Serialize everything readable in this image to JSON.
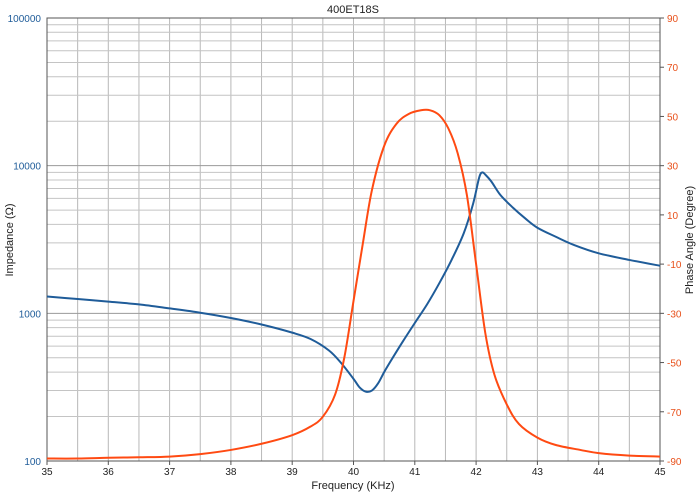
{
  "chart_data": {
    "type": "line",
    "title": "400ET18S",
    "xlabel": "Frequency (KHz)",
    "ylabel_left": "Impedance (Ω)",
    "ylabel_right": "Phase Angle (Degree)",
    "xlim": [
      35,
      45
    ],
    "x_ticks": [
      "35",
      "36",
      "37",
      "38",
      "39",
      "40",
      "41",
      "42",
      "43",
      "44",
      "45"
    ],
    "ylim_left": [
      100,
      100000
    ],
    "y_scale_left": "log",
    "y_ticks_left": [
      "100",
      "1000",
      "10000",
      "100000"
    ],
    "ylim_right": [
      -90,
      90
    ],
    "y_ticks_right": [
      "90",
      "70",
      "50",
      "30",
      "10",
      "-10",
      "-30",
      "-50",
      "-70",
      "-90"
    ],
    "grid": true,
    "colors": {
      "impedance": "#1f5c99",
      "phase": "#ff4a12"
    },
    "series": [
      {
        "axis": "left",
        "points": [
          [
            35,
            1300
          ],
          [
            35.5,
            1250
          ],
          [
            36,
            1200
          ],
          [
            36.5,
            1150
          ],
          [
            37,
            1080
          ],
          [
            37.5,
            1010
          ],
          [
            38,
            930
          ],
          [
            38.5,
            840
          ],
          [
            39,
            740
          ],
          [
            39.3,
            670
          ],
          [
            39.6,
            560
          ],
          [
            39.8,
            460
          ],
          [
            40,
            360
          ],
          [
            40.1,
            315
          ],
          [
            40.2,
            295
          ],
          [
            40.3,
            300
          ],
          [
            40.4,
            335
          ],
          [
            40.5,
            400
          ],
          [
            40.6,
            470
          ],
          [
            40.8,
            640
          ],
          [
            41,
            860
          ],
          [
            41.2,
            1150
          ],
          [
            41.4,
            1600
          ],
          [
            41.6,
            2300
          ],
          [
            41.8,
            3500
          ],
          [
            41.95,
            5500
          ],
          [
            42.05,
            8300
          ],
          [
            42.1,
            9000
          ],
          [
            42.15,
            8700
          ],
          [
            42.25,
            7800
          ],
          [
            42.4,
            6300
          ],
          [
            42.6,
            5200
          ],
          [
            42.8,
            4400
          ],
          [
            43,
            3800
          ],
          [
            43.3,
            3300
          ],
          [
            43.6,
            2900
          ],
          [
            44,
            2550
          ],
          [
            44.5,
            2300
          ],
          [
            45,
            2100
          ]
        ]
      },
      {
        "axis": "right",
        "points": [
          [
            35,
            -89
          ],
          [
            35.5,
            -89
          ],
          [
            36,
            -88.7
          ],
          [
            36.5,
            -88.5
          ],
          [
            37,
            -88.2
          ],
          [
            37.5,
            -87.2
          ],
          [
            38,
            -85.5
          ],
          [
            38.5,
            -83
          ],
          [
            39,
            -79.5
          ],
          [
            39.3,
            -76
          ],
          [
            39.5,
            -72
          ],
          [
            39.7,
            -63
          ],
          [
            39.85,
            -48
          ],
          [
            40,
            -25
          ],
          [
            40.15,
            -2
          ],
          [
            40.3,
            20
          ],
          [
            40.5,
            38
          ],
          [
            40.7,
            47
          ],
          [
            40.9,
            51
          ],
          [
            41.1,
            52.5
          ],
          [
            41.25,
            52.5
          ],
          [
            41.4,
            50.5
          ],
          [
            41.55,
            45
          ],
          [
            41.7,
            35
          ],
          [
            41.85,
            18
          ],
          [
            42,
            -10
          ],
          [
            42.15,
            -38
          ],
          [
            42.3,
            -55
          ],
          [
            42.5,
            -67
          ],
          [
            42.7,
            -75
          ],
          [
            43,
            -80.5
          ],
          [
            43.3,
            -83.5
          ],
          [
            43.7,
            -85.5
          ],
          [
            44,
            -86.8
          ],
          [
            44.5,
            -87.8
          ],
          [
            45,
            -88.2
          ]
        ]
      }
    ]
  }
}
